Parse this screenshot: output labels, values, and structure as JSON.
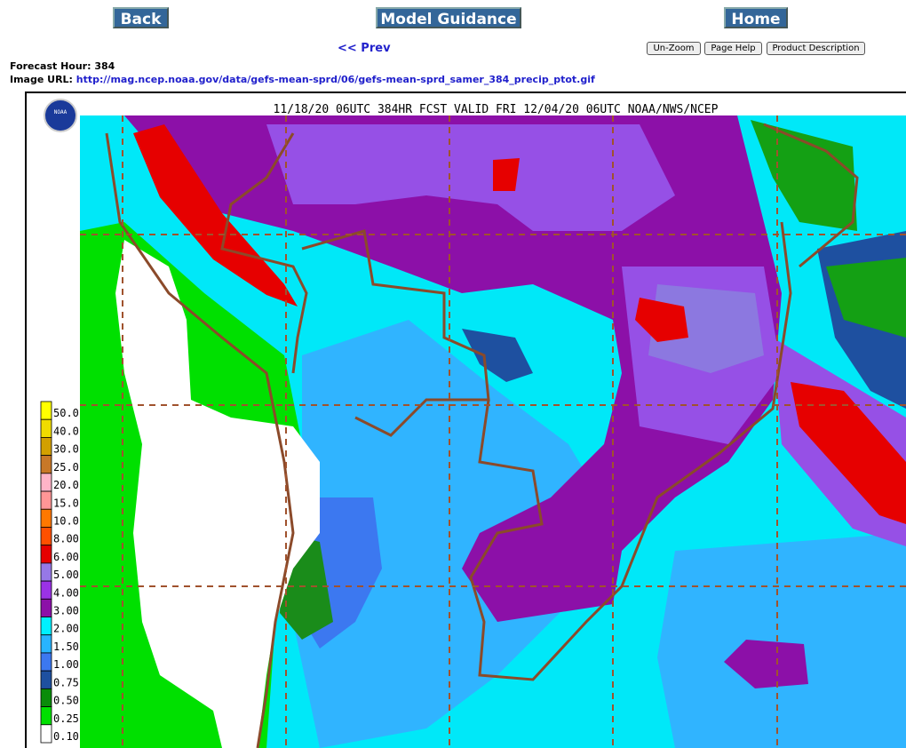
{
  "nav": {
    "back": "Back",
    "model_guidance": "Model Guidance",
    "home": "Home",
    "prev": "<< Prev",
    "unzoom": "Un-Zoom",
    "page_help": "Page Help",
    "product_description": "Product Description"
  },
  "info": {
    "forecast_hour_label": "Forecast Hour:",
    "forecast_hour": 384,
    "image_url_label": "Image URL:",
    "image_url": "http://mag.ncep.noaa.gov/data/gefs-mean-sprd/06/gefs-mean-sprd_samer_384_precip_ptot.gif"
  },
  "map": {
    "title": "11/18/20 06UTC 384HR FCST VALID FRI 12/04/20 06UTC NOAA/NWS/NCEP",
    "logo": "NOAA",
    "legend": [
      "50.0",
      "40.0",
      "30.0",
      "25.0",
      "20.0",
      "15.0",
      "10.0",
      "8.00",
      "6.00",
      "5.00",
      "4.00",
      "3.00",
      "2.00",
      "1.50",
      "1.00",
      "0.75",
      "0.50",
      "0.25",
      "0.10"
    ]
  }
}
